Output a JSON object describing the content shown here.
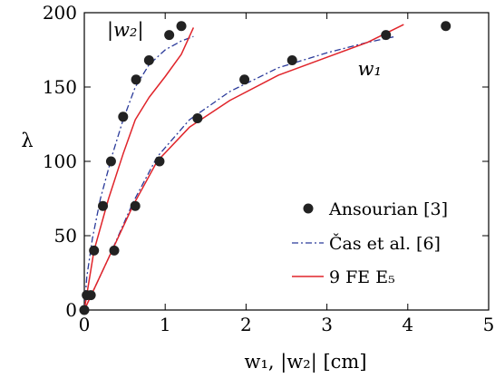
{
  "chart_data": {
    "type": "line",
    "title": "",
    "xlabel": "w₁, |w₂| [cm]",
    "ylabel": "λ",
    "xlim": [
      0,
      5
    ],
    "ylim": [
      0,
      200
    ],
    "xticks": [
      0,
      1,
      2,
      3,
      4,
      5
    ],
    "yticks": [
      0,
      50,
      100,
      150,
      200
    ],
    "grid": false,
    "legend_position": "bottom-right",
    "annotations": [
      {
        "text": "|w₂|",
        "x": 0.28,
        "y": 184
      },
      {
        "text": "w₁",
        "x": 3.38,
        "y": 158
      }
    ],
    "series": [
      {
        "name": "Ansourian [3]",
        "kind": "scatter",
        "marker": "filled-circle",
        "color": "#222222",
        "points": [
          [
            0.0,
            0
          ],
          [
            0.03,
            10
          ],
          [
            0.12,
            40
          ],
          [
            0.23,
            70
          ],
          [
            0.33,
            100
          ],
          [
            0.48,
            130
          ],
          [
            0.64,
            155
          ],
          [
            0.8,
            168
          ],
          [
            1.05,
            185
          ],
          [
            1.2,
            191
          ],
          [
            0.08,
            10
          ],
          [
            0.37,
            40
          ],
          [
            0.63,
            70
          ],
          [
            0.93,
            100
          ],
          [
            1.4,
            129
          ],
          [
            1.98,
            155
          ],
          [
            2.57,
            168
          ],
          [
            3.73,
            185
          ],
          [
            4.47,
            191
          ]
        ]
      },
      {
        "name": "Čas et al. [6]",
        "kind": "line",
        "style": "dash-dot",
        "color": "#2a3a9a",
        "segments": [
          [
            [
              0,
              0
            ],
            [
              0.03,
              22
            ],
            [
              0.1,
              48
            ],
            [
              0.2,
              75
            ],
            [
              0.35,
              105
            ],
            [
              0.48,
              128
            ],
            [
              0.63,
              150
            ],
            [
              0.8,
              165
            ],
            [
              1.0,
              175
            ],
            [
              1.2,
              181
            ],
            [
              1.35,
              184
            ]
          ],
          [
            [
              0,
              0
            ],
            [
              0.3,
              35
            ],
            [
              0.6,
              72
            ],
            [
              0.9,
              103
            ],
            [
              1.3,
              128
            ],
            [
              1.8,
              147
            ],
            [
              2.4,
              163
            ],
            [
              3.0,
              173
            ],
            [
              3.5,
              180
            ],
            [
              3.85,
              184
            ]
          ]
        ]
      },
      {
        "name": "9 FE E₅",
        "kind": "line",
        "style": "solid",
        "color": "#e0242a",
        "segments": [
          [
            [
              0,
              0
            ],
            [
              0.12,
              40
            ],
            [
              0.3,
              75
            ],
            [
              0.48,
              105
            ],
            [
              0.63,
              128
            ],
            [
              0.8,
              143
            ],
            [
              1.0,
              157
            ],
            [
              1.2,
              172
            ],
            [
              1.35,
              190
            ]
          ],
          [
            [
              0,
              0
            ],
            [
              0.3,
              35
            ],
            [
              0.6,
              70
            ],
            [
              0.9,
              100
            ],
            [
              1.3,
              123
            ],
            [
              1.8,
              141
            ],
            [
              2.4,
              158
            ],
            [
              3.0,
              170
            ],
            [
              3.5,
              180
            ],
            [
              3.95,
              192
            ]
          ]
        ]
      }
    ]
  }
}
